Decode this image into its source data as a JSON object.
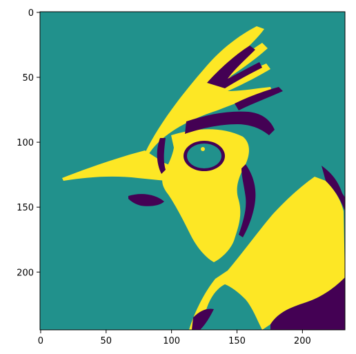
{
  "chart_data": {
    "type": "heatmap",
    "title": "",
    "xlabel": "",
    "ylabel": "",
    "image_size": [
      233,
      245
    ],
    "xlim": [
      0,
      232
    ],
    "ylim": [
      244,
      0
    ],
    "x_ticks": [
      0,
      50,
      100,
      150,
      200
    ],
    "y_ticks": [
      0,
      50,
      100,
      150,
      200
    ],
    "grid": false,
    "legend": "none",
    "colormap": "viridis",
    "levels": [
      {
        "value": 0,
        "color": "#440154"
      },
      {
        "value": 1,
        "color": "#21918c"
      },
      {
        "value": 2,
        "color": "#fde725"
      }
    ],
    "description": "Three-level posterized image of a bird head with crest, beak pointing left, eye in the center-right."
  }
}
